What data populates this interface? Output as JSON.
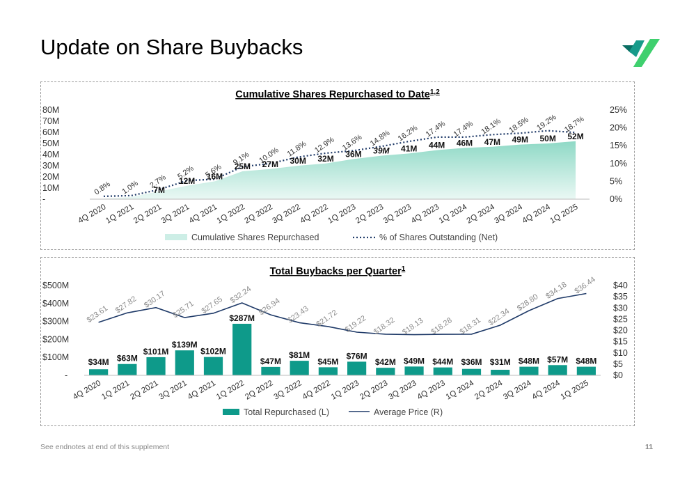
{
  "page": {
    "title": "Update on Share Buybacks",
    "footnote": "See endnotes at end of this supplement",
    "page_number": "11"
  },
  "colors": {
    "teal": "#0e9a8a",
    "teal_light": "#cdeee6",
    "navy": "#1f3a68",
    "logo_dark": "#0a6e63",
    "logo_mid": "#179b8a",
    "logo_light": "#3fd06e"
  },
  "chart_data": [
    {
      "type": "area",
      "title": "Cumulative Shares Repurchased to Date",
      "title_superscript": "1,2",
      "categories": [
        "4Q 2020",
        "1Q 2021",
        "2Q 2021",
        "3Q 2021",
        "4Q 2021",
        "1Q 2022",
        "2Q 2022",
        "3Q 2022",
        "4Q 2022",
        "1Q 2023",
        "2Q 2023",
        "3Q 2023",
        "4Q 2023",
        "1Q 2024",
        "2Q 2024",
        "3Q 2024",
        "4Q 2024",
        "1Q 2025"
      ],
      "y_left_ticks": [
        "-",
        "10M",
        "20M",
        "30M",
        "40M",
        "50M",
        "60M",
        "70M",
        "80M"
      ],
      "y_left_lim": [
        0,
        80
      ],
      "y_right_ticks": [
        "0%",
        "5%",
        "10%",
        "15%",
        "20%",
        "25%"
      ],
      "y_right_lim": [
        0,
        25
      ],
      "legend_position": "bottom",
      "series": [
        {
          "name": "Cumulative Shares Repurchased",
          "kind": "area",
          "values": [
            0.5,
            2,
            7,
            12,
            16,
            25,
            27,
            30,
            32,
            36,
            39,
            41,
            44,
            46,
            47,
            49,
            50,
            52
          ],
          "labels": [
            "",
            "",
            "7M",
            "12M",
            "16M",
            "25M",
            "27M",
            "30M",
            "32M",
            "36M",
            "39M",
            "41M",
            "44M",
            "46M",
            "47M",
            "49M",
            "50M",
            "52M"
          ]
        },
        {
          "name": "% of Shares Outstanding (Net)",
          "kind": "dotted-line",
          "values": [
            0.8,
            1.0,
            2.7,
            5.2,
            5.6,
            9.1,
            10.0,
            11.8,
            12.9,
            13.6,
            14.8,
            16.2,
            17.4,
            17.4,
            18.1,
            18.5,
            19.2,
            18.7
          ],
          "labels": [
            "0.8%",
            "1.0%",
            "2.7%",
            "5.2%",
            "5.6%",
            "9.1%",
            "10.0%",
            "11.8%",
            "12.9%",
            "13.6%",
            "14.8%",
            "16.2%",
            "17.4%",
            "17.4%",
            "18.1%",
            "18.5%",
            "19.2%",
            "18.7%"
          ]
        }
      ]
    },
    {
      "type": "bar",
      "title": "Total Buybacks per Quarter",
      "title_superscript": "1",
      "categories": [
        "4Q 2020",
        "1Q 2021",
        "2Q 2021",
        "3Q 2021",
        "4Q 2021",
        "1Q 2022",
        "2Q 2022",
        "3Q 2022",
        "4Q 2022",
        "1Q 2023",
        "2Q 2023",
        "3Q 2023",
        "4Q 2023",
        "1Q 2024",
        "2Q 2024",
        "3Q 2024",
        "4Q 2024",
        "1Q 2025"
      ],
      "y_left_ticks": [
        "-",
        "$100M",
        "$200M",
        "$300M",
        "$400M",
        "$500M"
      ],
      "y_left_lim": [
        0,
        500
      ],
      "y_right_ticks": [
        "$0",
        "$5",
        "$10",
        "$15",
        "$20",
        "$25",
        "$30",
        "$35",
        "$40"
      ],
      "y_right_lim": [
        0,
        40
      ],
      "legend_position": "bottom",
      "series": [
        {
          "name": "Total Repurchased (L)",
          "kind": "bar",
          "values": [
            34,
            63,
            101,
            139,
            102,
            287,
            47,
            81,
            45,
            76,
            42,
            49,
            44,
            36,
            31,
            48,
            57,
            48
          ],
          "labels": [
            "$34M",
            "$63M",
            "$101M",
            "$139M",
            "$102M",
            "$287M",
            "$47M",
            "$81M",
            "$45M",
            "$76M",
            "$42M",
            "$49M",
            "$44M",
            "$36M",
            "$31M",
            "$48M",
            "$57M",
            "$48M"
          ]
        },
        {
          "name": "Average Price (R)",
          "kind": "line",
          "values": [
            23.61,
            27.82,
            30.17,
            25.71,
            27.65,
            32.24,
            26.94,
            23.43,
            21.72,
            19.22,
            18.32,
            18.13,
            18.28,
            18.31,
            22.34,
            28.8,
            34.18,
            36.44
          ],
          "labels": [
            "$23.61",
            "$27.82",
            "$30.17",
            "$25.71",
            "$27.65",
            "$32.24",
            "$26.94",
            "$23.43",
            "$21.72",
            "$19.22",
            "$18.32",
            "$18.13",
            "$18.28",
            "$18.31",
            "$22.34",
            "$28.80",
            "$34.18",
            "$36.44"
          ]
        }
      ]
    }
  ]
}
